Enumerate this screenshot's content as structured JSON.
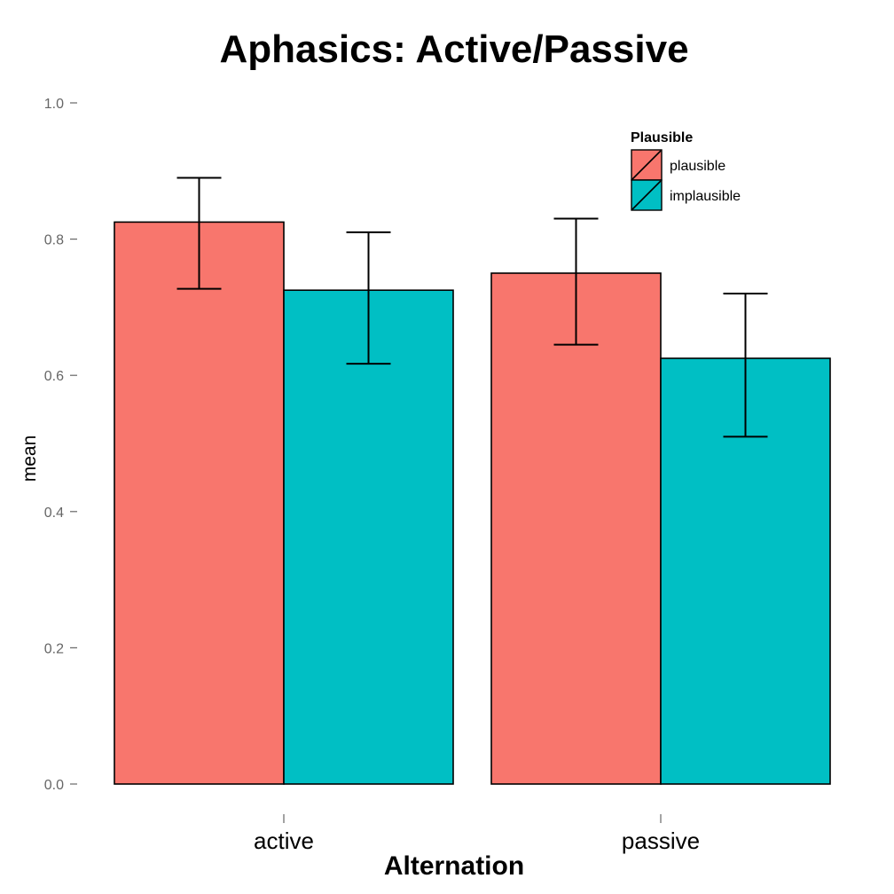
{
  "chart_data": {
    "type": "bar",
    "title": "Aphasics: Active/Passive",
    "xlabel": "Alternation",
    "ylabel": "mean",
    "categories": [
      "active",
      "passive"
    ],
    "series": [
      {
        "name": "plausible",
        "values": [
          0.825,
          0.75
        ],
        "error_low": [
          0.727,
          0.645
        ],
        "error_high": [
          0.89,
          0.83
        ],
        "color": "#F8766D"
      },
      {
        "name": "implausible",
        "values": [
          0.725,
          0.625
        ],
        "error_low": [
          0.617,
          0.51
        ],
        "error_high": [
          0.81,
          0.72
        ],
        "color": "#00BFC4"
      }
    ],
    "ylim": [
      0,
      1.0
    ],
    "yticks": [
      0.0,
      0.2,
      0.4,
      0.6,
      0.8,
      1.0
    ],
    "ytick_labels": [
      "0.0",
      "0.2",
      "0.4",
      "0.6",
      "0.8",
      "1.0"
    ],
    "legend": {
      "title": "Plausible",
      "placement": "top-right"
    },
    "grid": false
  }
}
